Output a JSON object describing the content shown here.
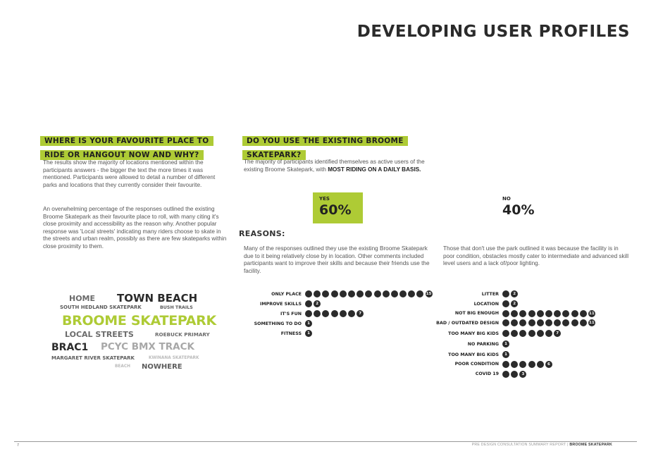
{
  "header": {
    "title": "DEVELOPING USER PROFILES"
  },
  "favourite": {
    "heading": "WHERE IS YOUR FAVOURITE PLACE TO RIDE OR HANGOUT NOW AND WHY?",
    "para1": "The results show the majority of locations mentioned within the participants answers - the bigger the text the more times it was mentioned. Participants were allowed to detail a number of different parks and locations that they currently consider their favourite.",
    "para2": "An overwhelming percentage of the responses outlined the existing Broome Skatepark as their favourite place to roll, with many citing it's close proximity and accessibility as the reason why. Another popular response was 'Local streets' indicating many riders choose to skate in the streets and urban realm, possibly as there are few skateparks within close proximity to them.",
    "word_cloud": [
      {
        "text": "HOME",
        "color": "#6b6b6b"
      },
      {
        "text": "TOWN BEACH",
        "color": "#2b2b2b"
      },
      {
        "text": "SOUTH HEDLAND SKATEPARK",
        "color": "#5c5c5c"
      },
      {
        "text": "BUSH TRAILS",
        "color": "#5c5c5c"
      },
      {
        "text": "BROOME SKATEPARK",
        "color": "#aecb35"
      },
      {
        "text": "LOCAL STREETS",
        "color": "#6b6b6b"
      },
      {
        "text": "ROEBUCK PRIMARY",
        "color": "#6b6b6b"
      },
      {
        "text": "BRAC1",
        "color": "#2b2b2b"
      },
      {
        "text": "PCYC BMX TRACK",
        "color": "#a8a8a8"
      },
      {
        "text": "MARGARET RIVER SKATEPARK",
        "color": "#5c5c5c"
      },
      {
        "text": "KWINANA SKATEPARK",
        "color": "#bbbbbb"
      },
      {
        "text": "BEACH",
        "color": "#bbbbbb"
      },
      {
        "text": "NOWHERE",
        "color": "#5c5c5c"
      }
    ]
  },
  "existing": {
    "heading": "DO YOU USE THE EXISTING BROOME SKATEPARK?",
    "intro": "The majority of participants identified themselves as active users of the existing Broome Skatepark, with ",
    "intro_bold": "MOST RIDING ON A DAILY BASIS.",
    "yes_label": "YES",
    "yes_value": "60%",
    "no_label": "NO",
    "no_value": "40%",
    "reasons_title": "REASONS:",
    "yes_text": "Many of the responses outlined they use the existing Broome Skatepark due to it being relatively close by in location. Other comments included participants want to improve their skills and because their friends use the facility.",
    "no_text": "Those that don't use the park outlined it was because the facility is in poor condition, obstacles mostly cater to intermediate and advanced skill level users and a lack of/poor lighting."
  },
  "chart_data": [
    {
      "type": "bar",
      "title": "",
      "categories": [
        "ONLY PLACE",
        "IMPROVE SKILLS",
        "IT'S FUN",
        "SOMETHING TO DO",
        "FITNESS"
      ],
      "values": [
        15,
        2,
        7,
        1,
        1
      ]
    },
    {
      "type": "bar",
      "title": "",
      "categories": [
        "LITTER",
        "LOCATION",
        "NOT BIG ENOUGH",
        "BAD / OUTDATED DESIGN",
        "TOO MANY BIG KIDS",
        "NO PARKING",
        "TOO MANY BIG KIDS",
        "POOR CONDITION",
        "COVID 19"
      ],
      "values": [
        2,
        2,
        11,
        11,
        7,
        1,
        1,
        6,
        3
      ]
    }
  ],
  "footer": {
    "page_number": "7",
    "report": "PRE DESIGN CONSULTATION SUMMARY REPORT",
    "separator": "|",
    "project": "BROOME SKATEPARK"
  }
}
